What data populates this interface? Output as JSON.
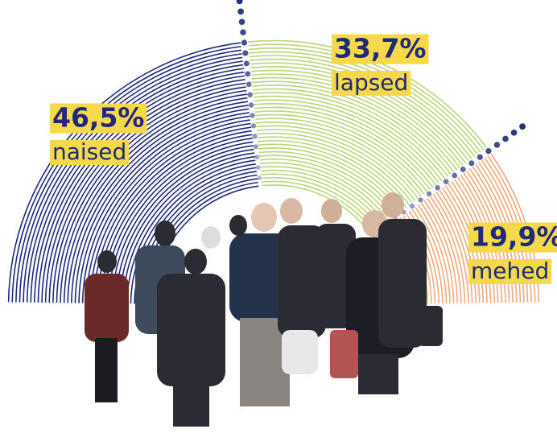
{
  "chart_data": {
    "type": "pie",
    "categories": [
      "naised",
      "lapsed",
      "mehed"
    ],
    "values": [
      46.5,
      33.7,
      19.9
    ],
    "value_labels": [
      "46,5%",
      "33,7%",
      "19,9%"
    ],
    "colors": [
      "#1f2a7a",
      "#b8d67c",
      "#f2aa7c"
    ]
  }
}
